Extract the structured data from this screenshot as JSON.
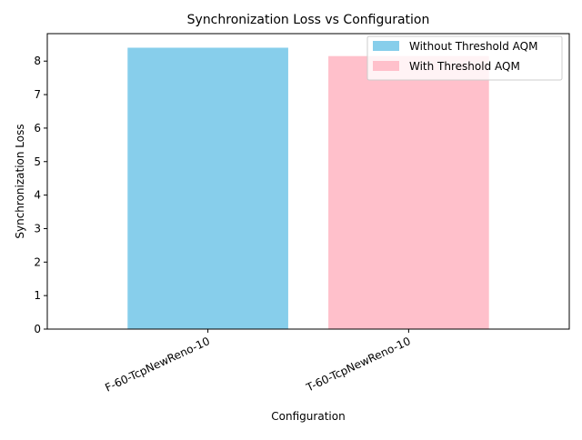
{
  "chart_data": {
    "type": "bar",
    "title": "Synchronization Loss vs Configuration",
    "xlabel": "Configuration",
    "ylabel": "Synchronization Loss",
    "categories": [
      "F-60-TcpNewReno-10",
      "T-60-TcpNewReno-10"
    ],
    "values": [
      8.4,
      8.15
    ],
    "bar_colors": [
      "#87ceeb",
      "#ffc0cb"
    ],
    "ylim": [
      0,
      8.82
    ],
    "yticks": [
      0,
      1,
      2,
      3,
      4,
      5,
      6,
      7,
      8
    ],
    "grid": false,
    "legend": {
      "placement": "top-right",
      "entries": [
        {
          "label": "Without Threshold AQM",
          "color": "#87ceeb"
        },
        {
          "label": "With Threshold AQM",
          "color": "#ffc0cb"
        }
      ]
    }
  }
}
